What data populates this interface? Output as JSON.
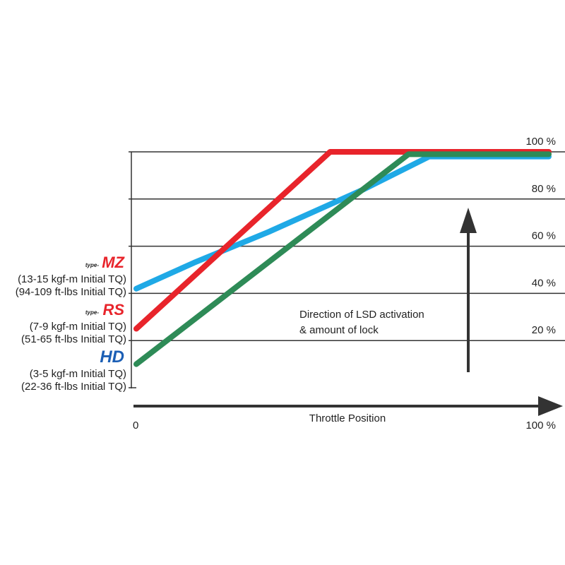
{
  "chart_data": {
    "type": "line",
    "title": "",
    "xlabel": "Throttle Position",
    "ylabel": "",
    "xlim": [
      0,
      100
    ],
    "ylim": [
      0,
      100
    ],
    "x_tick_labels": [
      "0",
      "100 %"
    ],
    "y_ticks": [
      20,
      40,
      60,
      80,
      100
    ],
    "y_tick_labels": [
      "20 %",
      "40 %",
      "60 %",
      "80 %",
      "100 %"
    ],
    "grid": "horizontal",
    "annotation": [
      "Direction of LSD activation",
      "& amount of lock"
    ],
    "series": [
      {
        "name": "type-MZ",
        "color": "#1fa9e6",
        "x": [
          0,
          14,
          32,
          55,
          71,
          100
        ],
        "y": [
          42,
          53,
          66,
          84,
          98,
          98
        ]
      },
      {
        "name": "type-RS",
        "color": "#e8242b",
        "x": [
          0,
          47,
          100
        ],
        "y": [
          25,
          100,
          100
        ]
      },
      {
        "name": "HD",
        "color": "#2e8b57",
        "x": [
          0,
          66,
          100
        ],
        "y": [
          10,
          99,
          99
        ]
      }
    ],
    "legend": [
      {
        "prefix": "type-",
        "logo": "MZ",
        "lines": [
          "(13-15 kgf-m Initial TQ)",
          "(94-109 ft-lbs Initial TQ)"
        ],
        "color": "#e8242b"
      },
      {
        "prefix": "type-",
        "logo": "RS",
        "lines": [
          "(7-9 kgf-m Initial TQ)",
          "(51-65 ft-lbs Initial TQ)"
        ],
        "color": "#e8242b"
      },
      {
        "prefix": "",
        "logo": "HD",
        "lines": [
          "(3-5 kgf-m Initial TQ)",
          "(22-36 ft-lbs Initial TQ)"
        ],
        "color": "#1c5fb5"
      }
    ],
    "legend_placement": "left"
  }
}
